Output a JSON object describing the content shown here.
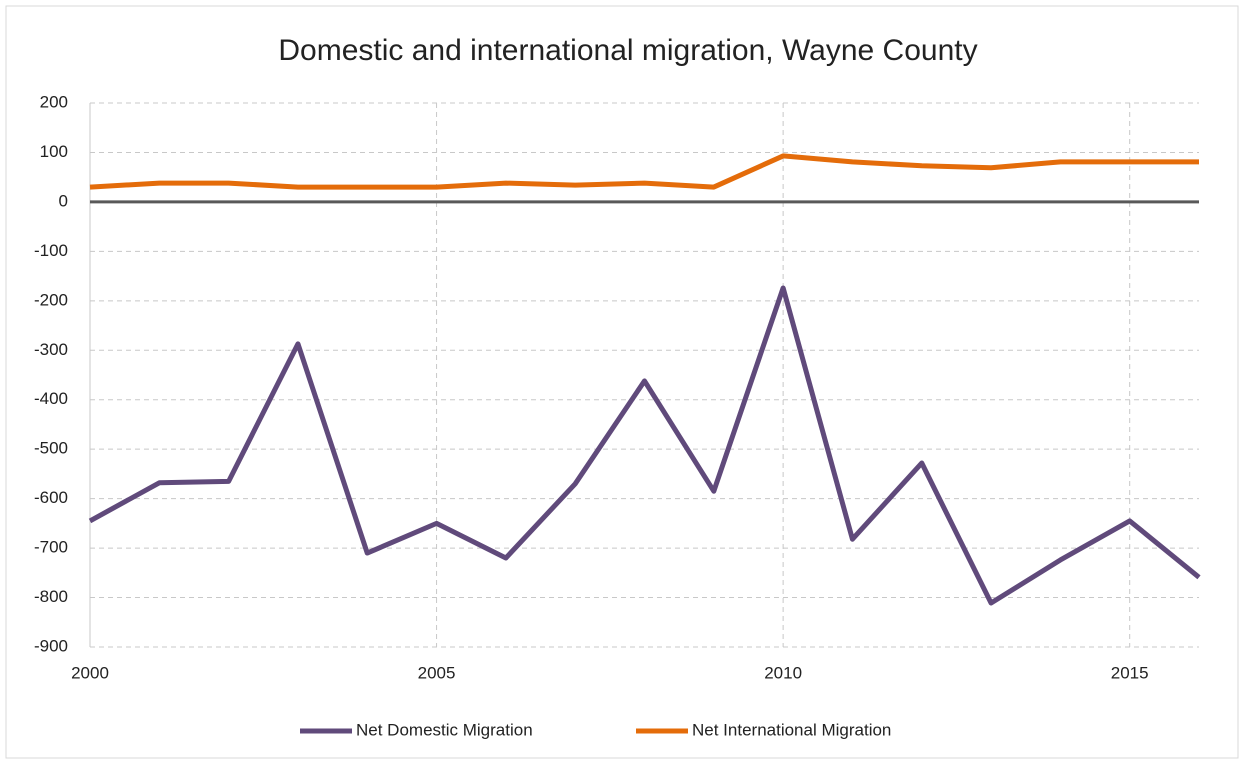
{
  "chart_data": {
    "type": "line",
    "title": "Domestic and international migration, Wayne County",
    "x": [
      2000,
      2001,
      2002,
      2003,
      2004,
      2005,
      2006,
      2007,
      2008,
      2009,
      2010,
      2011,
      2012,
      2013,
      2014,
      2015,
      2016
    ],
    "series": [
      {
        "name": "Net Domestic Migration",
        "color": "#604a7b",
        "values": [
          -645,
          -568,
          -565,
          -287,
          -710,
          -650,
          -720,
          -570,
          -362,
          -585,
          -174,
          -682,
          -528,
          -811,
          -724,
          -645,
          -759
        ]
      },
      {
        "name": "Net International Migration",
        "color": "#e46c0a",
        "values": [
          30,
          38,
          38,
          30,
          30,
          30,
          38,
          34,
          38,
          30,
          93,
          81,
          73,
          69,
          81,
          81,
          81
        ]
      }
    ],
    "xlim": [
      2000,
      2016
    ],
    "xticks": [
      2000,
      2005,
      2010,
      2015
    ],
    "ylim": [
      -900,
      200
    ],
    "yticks": [
      -900,
      -800,
      -700,
      -600,
      -500,
      -400,
      -300,
      -200,
      -100,
      0,
      100,
      200
    ],
    "grid": true,
    "legend": "bottom"
  }
}
